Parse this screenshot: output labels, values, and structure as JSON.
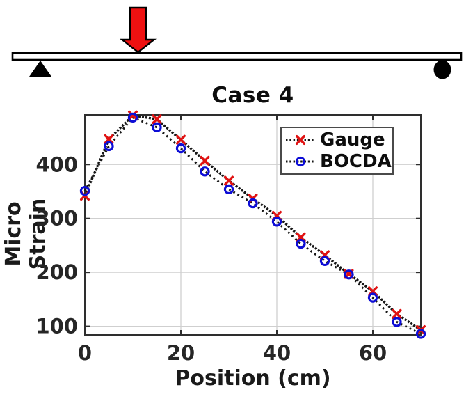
{
  "beam_diagram": {
    "description": "simply supported beam with downward point load",
    "load_arrow_color": "#ee1111",
    "beam_fill": "#ffffff",
    "outline_color": "#000000"
  },
  "chart_data": {
    "type": "line",
    "title": "Case 4",
    "xlabel": "Position (cm)",
    "ylabel": "Micro Strain",
    "x": [
      0,
      5,
      10,
      15,
      20,
      25,
      30,
      35,
      40,
      45,
      50,
      55,
      60,
      65,
      70
    ],
    "series": [
      {
        "name": "Gauge",
        "marker": "x",
        "marker_color": "#e01212",
        "line_color": "#161616",
        "line_style": "dotted",
        "values": [
          342,
          447,
          491,
          484,
          446,
          407,
          370,
          337,
          305,
          265,
          232,
          197,
          165,
          123,
          93
        ]
      },
      {
        "name": "BOCDA",
        "marker": "o",
        "marker_color": "#0d0dd6",
        "line_color": "#161616",
        "line_style": "dotted",
        "values": [
          351,
          434,
          487,
          469,
          430,
          387,
          354,
          328,
          294,
          253,
          221,
          196,
          153,
          108,
          86
        ]
      }
    ],
    "xlim": [
      0,
      70
    ],
    "ylim": [
      84,
      492
    ],
    "xticks": [
      0,
      20,
      40,
      60
    ],
    "yticks": [
      100,
      200,
      300,
      400
    ],
    "grid": true,
    "grid_color": "#cfcfcf",
    "axis_color": "#2e2e2e",
    "legend_position": "upper right"
  }
}
